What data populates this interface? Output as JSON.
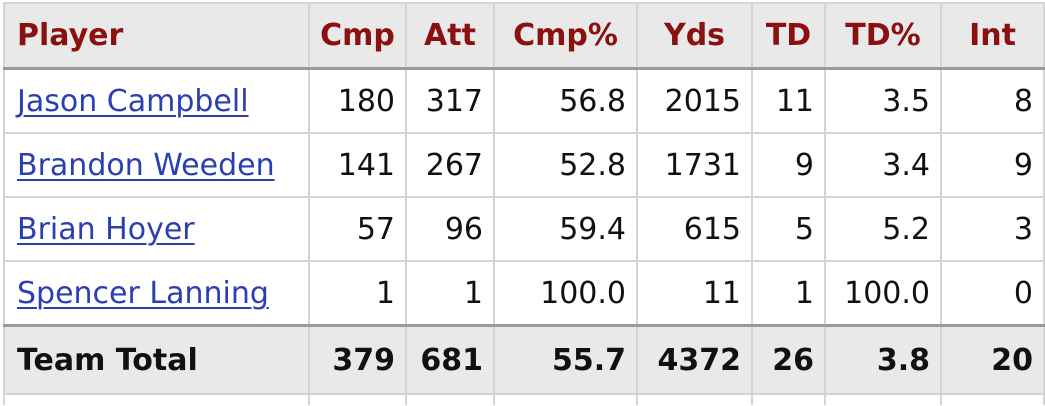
{
  "table": {
    "headers": [
      "Player",
      "Cmp",
      "Att",
      "Cmp%",
      "Yds",
      "TD",
      "TD%",
      "Int"
    ],
    "rows": [
      {
        "player": "Jason Campbell",
        "cmp": "180",
        "att": "317",
        "cmp_pct": "56.8",
        "yds": "2015",
        "td": "11",
        "td_pct": "3.5",
        "int": "8"
      },
      {
        "player": "Brandon Weeden",
        "cmp": "141",
        "att": "267",
        "cmp_pct": "52.8",
        "yds": "1731",
        "td": "9",
        "td_pct": "3.4",
        "int": "9"
      },
      {
        "player": "Brian Hoyer",
        "cmp": "57",
        "att": "96",
        "cmp_pct": "59.4",
        "yds": "615",
        "td": "5",
        "td_pct": "5.2",
        "int": "3"
      },
      {
        "player": "Spencer Lanning",
        "cmp": "1",
        "att": "1",
        "cmp_pct": "100.0",
        "yds": "11",
        "td": "1",
        "td_pct": "100.0",
        "int": "0"
      }
    ],
    "total": {
      "player": "Team Total",
      "cmp": "379",
      "att": "681",
      "cmp_pct": "55.7",
      "yds": "4372",
      "td": "26",
      "td_pct": "3.8",
      "int": "20"
    }
  },
  "colors": {
    "header_text": "#8b1010",
    "link": "#2b3fb0",
    "header_bg": "#e9e9e9",
    "grid": "#d4d4d4"
  }
}
